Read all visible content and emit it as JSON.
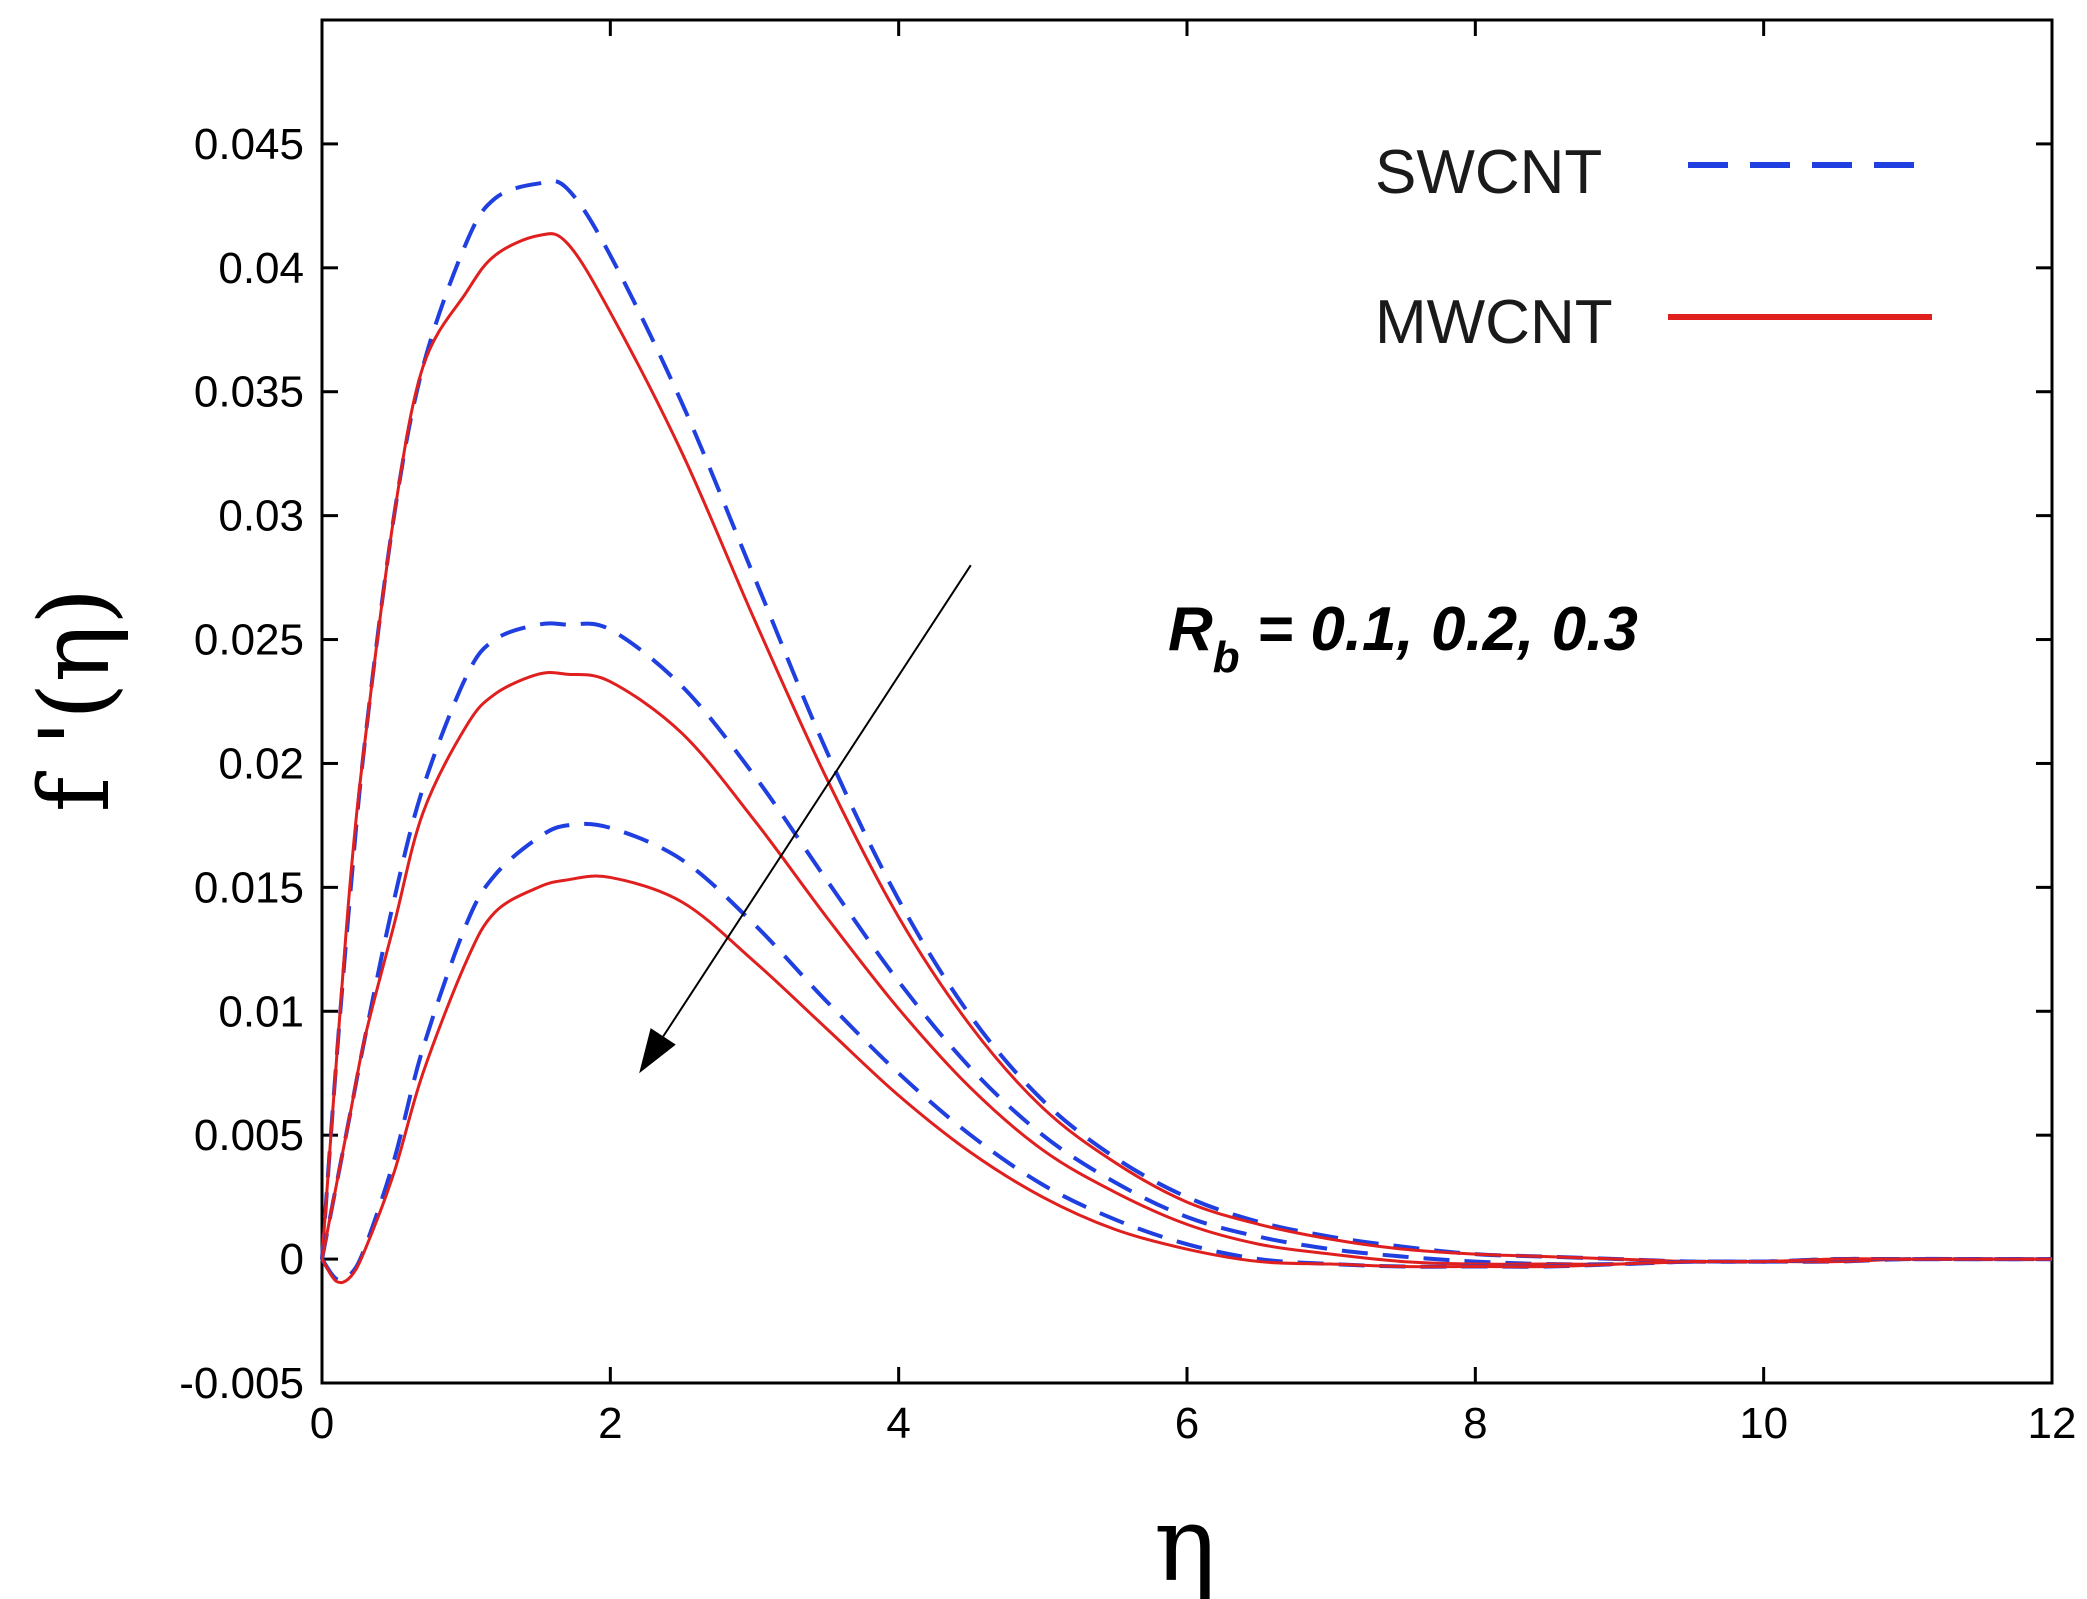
{
  "chart_data": {
    "type": "line",
    "title": "",
    "xlabel": "η",
    "ylabel": "f '(η)",
    "xlim": [
      0,
      12
    ],
    "ylim": [
      -0.005,
      0.05
    ],
    "x_ticks": [
      "0",
      "2",
      "4",
      "6",
      "8",
      "10",
      "12"
    ],
    "y_ticks": [
      "-0.005",
      "0",
      "0.005",
      "0.01",
      "0.015",
      "0.02",
      "0.025",
      "0.03",
      "0.035",
      "0.04",
      "0.045"
    ],
    "grid": false,
    "legend": [
      {
        "label": "SWCNT",
        "style": "dashed",
        "color": "#1f3fe0"
      },
      {
        "label": "MWCNT",
        "style": "solid",
        "color": "#e01f1f"
      }
    ],
    "annotation": {
      "symbol": "R",
      "subscript": "b",
      "text": " = 0.1, 0.2, 0.3",
      "arrow_from": [
        4.5,
        0.028
      ],
      "arrow_to": [
        2.2,
        0.0075
      ]
    },
    "x": [
      0,
      0.1,
      0.2,
      0.3,
      0.5,
      0.7,
      1.0,
      1.2,
      1.5,
      1.7,
      2.0,
      2.5,
      3.0,
      3.5,
      4.0,
      4.5,
      5.0,
      5.5,
      6.0,
      6.5,
      7.0,
      7.5,
      8.0,
      8.5,
      9.0,
      9.5,
      10.0,
      10.5,
      11.0,
      11.5,
      12.0
    ],
    "series": [
      {
        "name": "SWCNT, Rb = 0.1",
        "style": "dashed",
        "color": "#1f3fe0",
        "values": [
          0,
          0.008,
          0.015,
          0.021,
          0.03,
          0.036,
          0.041,
          0.0428,
          0.0434,
          0.0432,
          0.0405,
          0.0345,
          0.0275,
          0.0205,
          0.0145,
          0.0098,
          0.0064,
          0.0041,
          0.0025,
          0.0015,
          0.0009,
          0.0005,
          0.0002,
          0.0001,
          0.0,
          -0.0001,
          -0.0001,
          -0.0001,
          0,
          0,
          0
        ]
      },
      {
        "name": "MWCNT, Rb = 0.1",
        "style": "solid",
        "color": "#e01f1f",
        "values": [
          0,
          0.008,
          0.0155,
          0.021,
          0.03,
          0.036,
          0.039,
          0.0405,
          0.0413,
          0.041,
          0.0382,
          0.0325,
          0.0258,
          0.0194,
          0.0138,
          0.0094,
          0.0061,
          0.0039,
          0.0023,
          0.0014,
          0.0008,
          0.0004,
          0.0002,
          0.0001,
          0.0,
          -0.0001,
          -0.0001,
          -0.0001,
          0,
          0,
          0
        ]
      },
      {
        "name": "SWCNT, Rb = 0.2",
        "style": "dashed",
        "color": "#1f3fe0",
        "values": [
          0,
          0.003,
          0.006,
          0.009,
          0.0145,
          0.019,
          0.0235,
          0.025,
          0.0256,
          0.0256,
          0.0254,
          0.0231,
          0.0195,
          0.0153,
          0.0112,
          0.0077,
          0.005,
          0.0031,
          0.0017,
          0.0009,
          0.0004,
          0.0001,
          -0.0001,
          -0.0002,
          -0.0002,
          -0.0001,
          -0.0001,
          0,
          0,
          0,
          0
        ]
      },
      {
        "name": "MWCNT, Rb = 0.2",
        "style": "solid",
        "color": "#e01f1f",
        "values": [
          0,
          0.003,
          0.006,
          0.009,
          0.0135,
          0.018,
          0.0215,
          0.0228,
          0.0236,
          0.0236,
          0.0233,
          0.0212,
          0.0177,
          0.0138,
          0.0101,
          0.0069,
          0.0044,
          0.0027,
          0.0014,
          0.0006,
          0.0002,
          -0.0001,
          -0.0002,
          -0.0002,
          -0.0002,
          -0.0001,
          -0.0001,
          0,
          0,
          0,
          0
        ]
      },
      {
        "name": "SWCNT, Rb = 0.3",
        "style": "dashed",
        "color": "#1f3fe0",
        "values": [
          0,
          -0.0008,
          -0.0006,
          0.0005,
          0.004,
          0.0085,
          0.0135,
          0.0155,
          0.017,
          0.0175,
          0.0174,
          0.0161,
          0.0135,
          0.0104,
          0.0075,
          0.005,
          0.003,
          0.0016,
          0.0006,
          0.0,
          -0.0002,
          -0.0003,
          -0.0003,
          -0.0003,
          -0.0002,
          -0.0001,
          -0.0001,
          0,
          0,
          0,
          0
        ]
      },
      {
        "name": "MWCNT, Rb = 0.3",
        "style": "solid",
        "color": "#e01f1f",
        "values": [
          0,
          -0.0009,
          -0.0007,
          0.0004,
          0.0035,
          0.0075,
          0.012,
          0.014,
          0.015,
          0.0153,
          0.0154,
          0.0144,
          0.012,
          0.0093,
          0.0066,
          0.0043,
          0.0025,
          0.0012,
          0.0004,
          -0.0001,
          -0.0002,
          -0.0003,
          -0.0003,
          -0.0003,
          -0.0002,
          -0.0001,
          -0.0001,
          0,
          0,
          0,
          0
        ]
      }
    ]
  }
}
